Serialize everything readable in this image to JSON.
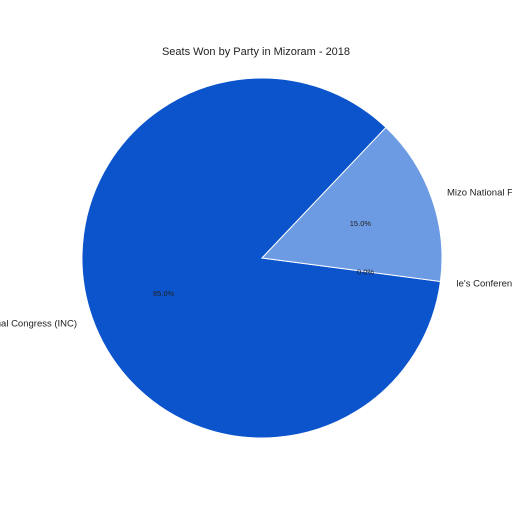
{
  "chart_data": {
    "type": "pie",
    "title": "Seats Won by Party in Mizoram - 2018",
    "slices": [
      {
        "label": "Indian National Congress (INC)",
        "value": 85.0,
        "display_label": "Indian National Congress (INC)",
        "pct_label": "85.0%",
        "color": "#0b54cc"
      },
      {
        "label": "Mizo National Front (MNF)",
        "value": 15.0,
        "display_label": "Mizo National Front (MNF)",
        "pct_label": "15.0%",
        "color": "#6d9be3"
      },
      {
        "label": "Mizoram People's Conference (MPC)",
        "value": 0.0,
        "display_label": "le's Conference (MPC)",
        "pct_label": "0.0%",
        "color": "#6d9be3"
      }
    ]
  }
}
